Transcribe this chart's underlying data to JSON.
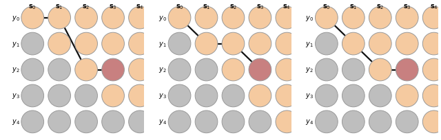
{
  "panels": 3,
  "rows": 5,
  "cols": 5,
  "col_labels": [
    "s_0",
    "s_1",
    "s_2",
    "s_3",
    "s_4"
  ],
  "row_labels": [
    "y_0",
    "y_1",
    "y_2",
    "y_3",
    "y_4"
  ],
  "color_peach": "#F5CAA0",
  "color_gray": "#BEBEBE",
  "color_pink": "#C88080",
  "color_edge": "#999999",
  "color_line": "#111111",
  "cell_colors_panels": [
    [
      [
        "peach",
        "peach",
        "peach",
        "peach",
        "peach"
      ],
      [
        "gray",
        "peach",
        "peach",
        "peach",
        "peach"
      ],
      [
        "gray",
        "gray",
        "peach",
        "pink",
        "peach"
      ],
      [
        "gray",
        "gray",
        "gray",
        "peach",
        "peach"
      ],
      [
        "gray",
        "gray",
        "gray",
        "gray",
        "gray"
      ]
    ],
    [
      [
        "peach",
        "peach",
        "peach",
        "peach",
        "peach"
      ],
      [
        "gray",
        "peach",
        "peach",
        "peach",
        "peach"
      ],
      [
        "gray",
        "gray",
        "peach",
        "pink",
        "peach"
      ],
      [
        "gray",
        "gray",
        "gray",
        "peach",
        "peach"
      ],
      [
        "gray",
        "gray",
        "gray",
        "gray",
        "peach"
      ]
    ],
    [
      [
        "peach",
        "peach",
        "peach",
        "peach",
        "peach"
      ],
      [
        "gray",
        "peach",
        "peach",
        "peach",
        "peach"
      ],
      [
        "gray",
        "gray",
        "peach",
        "pink",
        "peach"
      ],
      [
        "gray",
        "gray",
        "gray",
        "peach",
        "peach"
      ],
      [
        "gray",
        "gray",
        "gray",
        "gray",
        "peach"
      ]
    ]
  ],
  "paths": [
    [
      [
        0,
        0
      ],
      [
        0,
        1
      ],
      [
        2,
        2
      ],
      [
        2,
        3
      ]
    ],
    [
      [
        0,
        0
      ],
      [
        1,
        1
      ],
      [
        1,
        2
      ],
      [
        2,
        3
      ]
    ],
    [
      [
        0,
        0
      ],
      [
        1,
        1
      ],
      [
        2,
        2
      ],
      [
        2,
        3
      ]
    ]
  ],
  "figsize": [
    6.4,
    2.05
  ],
  "dpi": 100
}
